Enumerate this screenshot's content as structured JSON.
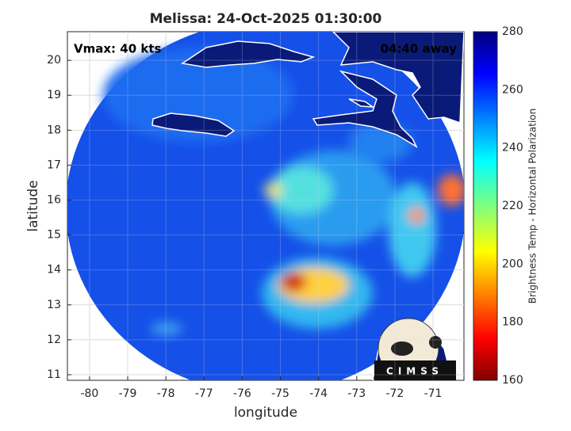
{
  "chart_data": {
    "type": "map",
    "title": "Melissa: 24-Oct-2025 01:30:00",
    "annotations": [
      "Vmax: 40 kts",
      "04:40 away"
    ],
    "xlabel": "longitude",
    "ylabel": "latitude",
    "xlim": [
      -80.58,
      -70.19
    ],
    "ylim": [
      10.84,
      20.82
    ],
    "xticks": [
      -80,
      -79,
      -78,
      -77,
      -76,
      -75,
      -74,
      -73,
      -72,
      -71
    ],
    "yticks": [
      11,
      12,
      13,
      14,
      15,
      16,
      17,
      18,
      19,
      20
    ],
    "grid": true,
    "colorbar": {
      "label": "Brightness Temp - Horizontal Polarization",
      "lim": [
        160,
        280
      ],
      "ticks": [
        160,
        180,
        200,
        220,
        240,
        260,
        280
      ]
    },
    "logo": "CIMSS"
  }
}
